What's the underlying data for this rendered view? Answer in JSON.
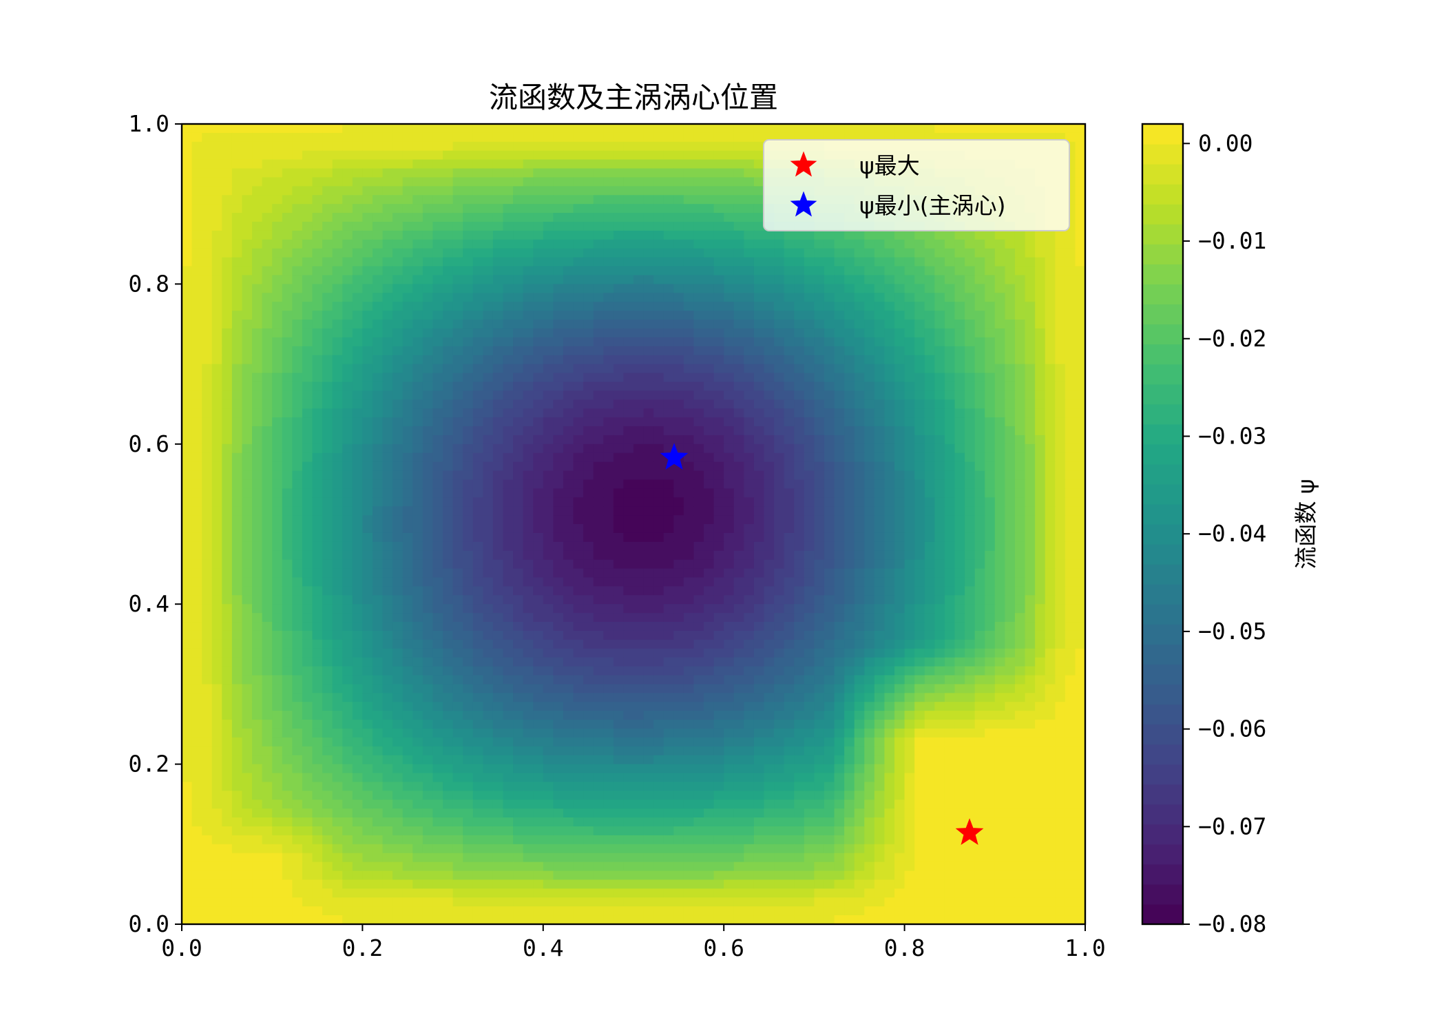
{
  "chart_data": {
    "type": "heatmap",
    "subtype": "filled-contour",
    "title": "流函数及主涡涡心位置",
    "xlim": [
      0.0,
      1.0
    ],
    "ylim": [
      0.0,
      1.0
    ],
    "x_ticks": [
      "0.0",
      "0.2",
      "0.4",
      "0.6",
      "0.8",
      "1.0"
    ],
    "y_ticks": [
      "0.0",
      "0.2",
      "0.4",
      "0.6",
      "0.8",
      "1.0"
    ],
    "x_tick_values": [
      0.0,
      0.2,
      0.4,
      0.6,
      0.8,
      1.0
    ],
    "y_tick_values": [
      0.0,
      0.2,
      0.4,
      0.6,
      0.8,
      1.0
    ],
    "colormap": "viridis",
    "colorbar": {
      "label": "流函数 ψ",
      "vmin": -0.08,
      "vmax": 0.002,
      "ticks": [
        "0.00",
        "-0.01",
        "-0.02",
        "-0.03",
        "-0.04",
        "-0.05",
        "-0.06",
        "-0.07",
        "-0.08"
      ],
      "tick_values": [
        0.0,
        -0.01,
        -0.02,
        -0.03,
        -0.04,
        -0.05,
        -0.06,
        -0.07,
        -0.08
      ]
    },
    "field": {
      "description": "lid-driven cavity stream function, primary vortex",
      "min_value": -0.08,
      "max_value": 0.002,
      "primary_vortex_center": [
        0.545,
        0.583
      ],
      "secondary_region_max": [
        0.872,
        0.114
      ]
    },
    "markers": [
      {
        "name": "ψ最大",
        "x": 0.872,
        "y": 0.114,
        "color": "#ff0000",
        "symbol": "star"
      },
      {
        "name": "ψ最小(主涡心)",
        "x": 0.545,
        "y": 0.583,
        "color": "#0000ff",
        "symbol": "star"
      }
    ],
    "legend_placement": "top-right",
    "grid": false
  }
}
